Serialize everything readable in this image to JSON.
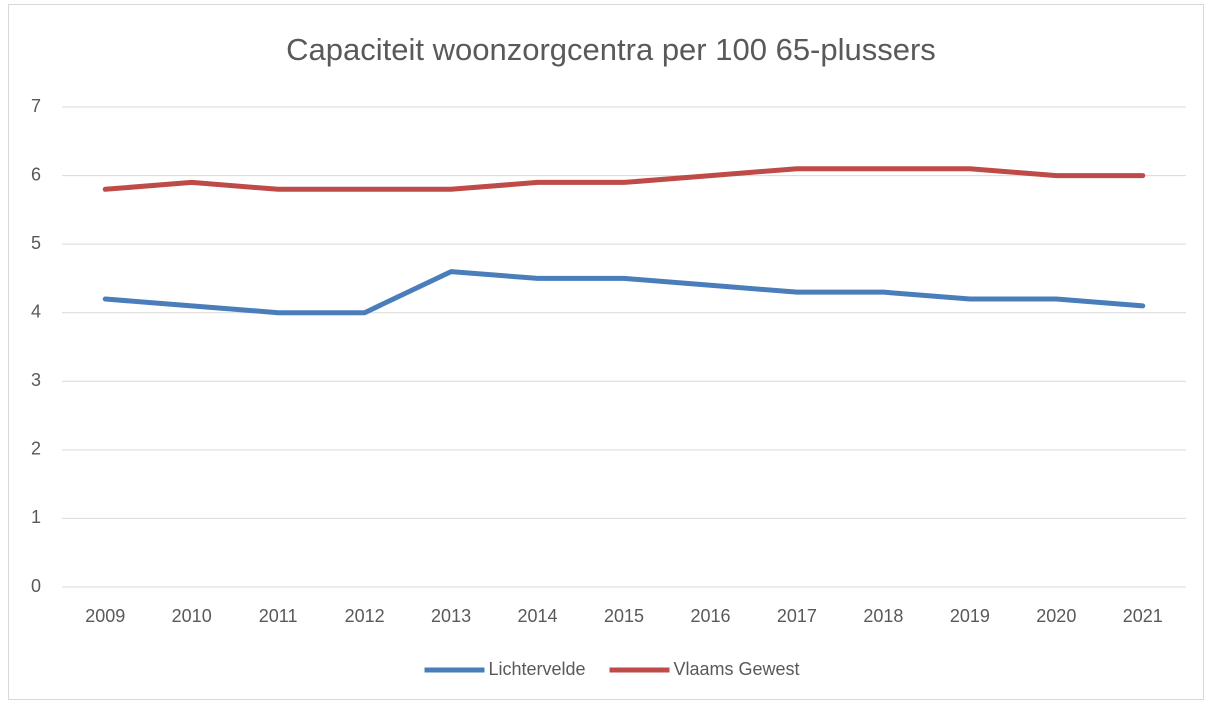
{
  "chart_data": {
    "type": "line",
    "title": "Capaciteit woonzorgcentra per 100 65-plussers",
    "categories": [
      "2009",
      "2010",
      "2011",
      "2012",
      "2013",
      "2014",
      "2015",
      "2016",
      "2017",
      "2018",
      "2019",
      "2020",
      "2021"
    ],
    "series": [
      {
        "name": "Lichtervelde",
        "color": "#4a7ebb",
        "values": [
          4.2,
          4.1,
          4.0,
          4.0,
          4.6,
          4.5,
          4.5,
          4.4,
          4.3,
          4.3,
          4.2,
          4.2,
          4.1
        ]
      },
      {
        "name": "Vlaams Gewest",
        "color": "#be4b48",
        "values": [
          5.8,
          5.9,
          5.8,
          5.8,
          5.8,
          5.9,
          5.9,
          6.0,
          6.1,
          6.1,
          6.1,
          6.0,
          6.0
        ]
      }
    ],
    "ylim": [
      0,
      7
    ],
    "yticks": [
      0,
      1,
      2,
      3,
      4,
      5,
      6,
      7
    ],
    "grid": true,
    "legend": "bottom"
  }
}
